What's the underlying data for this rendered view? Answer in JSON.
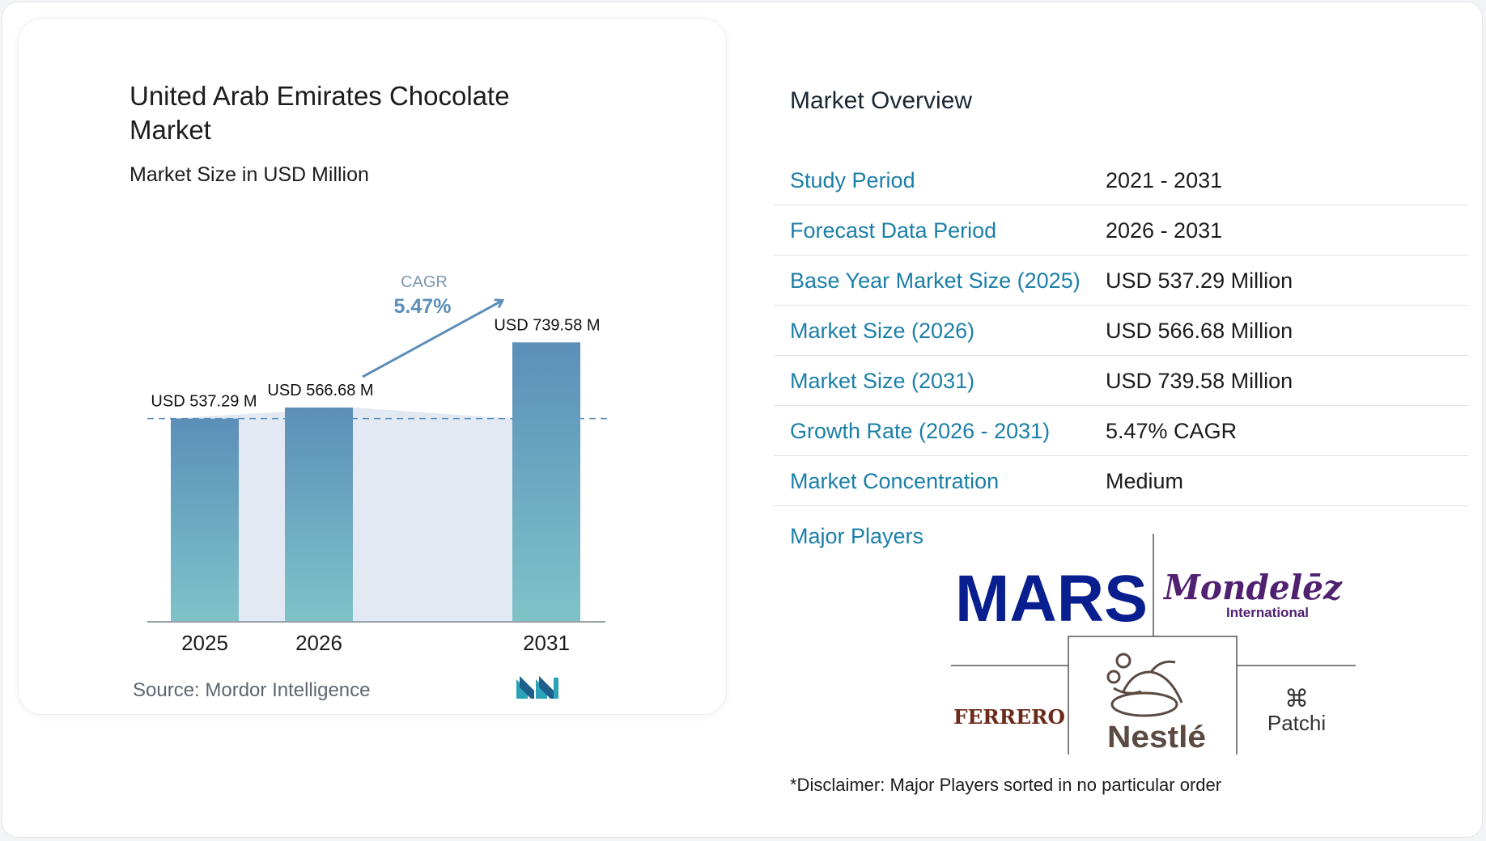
{
  "chart_data": {
    "type": "bar",
    "title": "United Arab Emirates Chocolate Market",
    "subtitle": "Market Size in USD Million",
    "categories": [
      "2025",
      "2026",
      "2031"
    ],
    "values": [
      537.29,
      566.68,
      739.58
    ],
    "value_labels": [
      "USD 537.29 M",
      "USD 566.68 M",
      "USD 739.58 M"
    ],
    "cagr_label": "CAGR",
    "cagr_value": "5.47%",
    "colors": {
      "bar_top": "#5b8fb9",
      "bar_bottom": "#7fc3c9",
      "area": "#e2e9f2",
      "arrow": "#5b8fb9"
    }
  },
  "source": "Source:  Mordor Intelligence",
  "overview": {
    "title": "Market Overview",
    "rows": [
      {
        "label": "Study Period",
        "value": "2021 - 2031"
      },
      {
        "label": "Forecast Data Period",
        "value": "2026 - 2031"
      },
      {
        "label": "Base Year Market Size (2025)",
        "value": "USD 537.29 Million"
      },
      {
        "label": "Market Size (2026)",
        "value": "USD 566.68 Million"
      },
      {
        "label": "Market Size (2031)",
        "value": "USD 739.58 Million"
      },
      {
        "label": "Growth Rate (2026 - 2031)",
        "value": "5.47% CAGR"
      },
      {
        "label": "Market Concentration",
        "value": "Medium"
      }
    ],
    "players_label": "Major Players",
    "players": [
      "MARS",
      "Mondelēz",
      "International",
      "FERRERO",
      "Nestlé",
      "Patchi"
    ],
    "disclaimer": "*Disclaimer: Major Players sorted in no particular order"
  }
}
